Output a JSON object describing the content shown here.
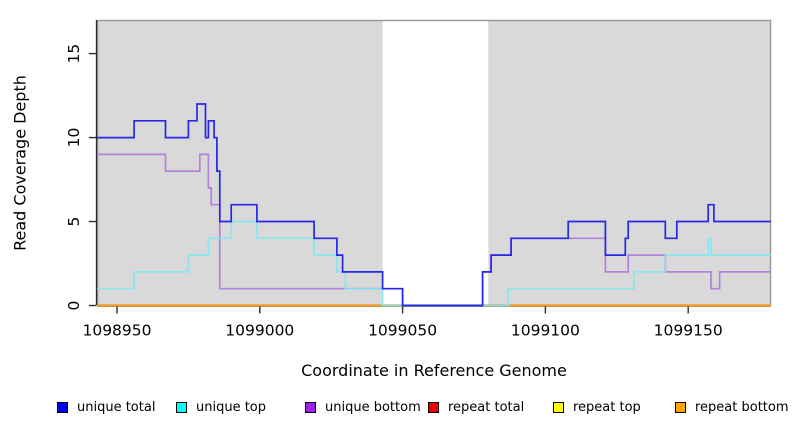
{
  "chart_data": {
    "type": "line",
    "subtype": "step-after",
    "title": "",
    "xlabel": "Coordinate in Reference Genome",
    "ylabel": "Read Coverage Depth",
    "xlim": [
      1098943,
      1099179
    ],
    "ylim": [
      0,
      17
    ],
    "xticks": [
      1098950,
      1099000,
      1099050,
      1099100,
      1099150
    ],
    "yticks": [
      0,
      5,
      10,
      15
    ],
    "grid": false,
    "plot_bg": "#D9D9D9",
    "plot_border": "#979797",
    "axis_color": "#2b2b2b",
    "gap_region": {
      "from": 1099043,
      "to": 1099080,
      "color": "#FFFFFF"
    },
    "legend_position": "bottom",
    "series": [
      {
        "name": "unique total",
        "color": "#2727E8",
        "legend_color": "#0000EE",
        "opacity": 1,
        "points": [
          [
            1098943,
            10
          ],
          [
            1098956,
            11
          ],
          [
            1098967,
            10
          ],
          [
            1098975,
            11
          ],
          [
            1098978,
            12
          ],
          [
            1098981,
            10
          ],
          [
            1098982,
            11
          ],
          [
            1098984,
            10
          ],
          [
            1098985,
            8
          ],
          [
            1098986,
            5
          ],
          [
            1098990,
            6
          ],
          [
            1098999,
            5
          ],
          [
            1099019,
            4
          ],
          [
            1099027,
            3
          ],
          [
            1099029,
            2
          ],
          [
            1099043,
            1
          ],
          [
            1099050,
            0
          ],
          [
            1099078,
            2
          ],
          [
            1099081,
            3
          ],
          [
            1099088,
            4
          ],
          [
            1099108,
            5
          ],
          [
            1099121,
            3
          ],
          [
            1099128,
            4
          ],
          [
            1099129,
            5
          ],
          [
            1099142,
            4
          ],
          [
            1099146,
            5
          ],
          [
            1099157,
            6
          ],
          [
            1099159,
            5
          ],
          [
            1099179,
            5
          ]
        ]
      },
      {
        "name": "unique top",
        "color": "#7DE9F0",
        "legend_color": "#00FFFF",
        "opacity": 0.85,
        "points": [
          [
            1098943,
            1
          ],
          [
            1098956,
            2
          ],
          [
            1098975,
            3
          ],
          [
            1098982,
            4
          ],
          [
            1098990,
            5
          ],
          [
            1098999,
            4
          ],
          [
            1099019,
            3
          ],
          [
            1099027,
            2
          ],
          [
            1099030,
            1
          ],
          [
            1099043,
            0
          ],
          [
            1099087,
            1
          ],
          [
            1099131,
            2
          ],
          [
            1099142,
            3
          ],
          [
            1099157,
            4
          ],
          [
            1099158,
            3
          ],
          [
            1099179,
            3
          ]
        ]
      },
      {
        "name": "unique bottom",
        "color": "#B382DE",
        "legend_color": "#A020F0",
        "opacity": 1,
        "points": [
          [
            1098943,
            9
          ],
          [
            1098967,
            8
          ],
          [
            1098979,
            9
          ],
          [
            1098982,
            7
          ],
          [
            1098983,
            6
          ],
          [
            1098986,
            1
          ],
          [
            1099050,
            0
          ],
          [
            1099078,
            2
          ],
          [
            1099081,
            3
          ],
          [
            1099088,
            4
          ],
          [
            1099121,
            2
          ],
          [
            1099129,
            3
          ],
          [
            1099142,
            2
          ],
          [
            1099158,
            1
          ],
          [
            1099161,
            2
          ],
          [
            1099179,
            2
          ]
        ]
      },
      {
        "name": "repeat total",
        "color": "#E60000",
        "legend_color": "#EE0000",
        "opacity": 1,
        "points": [
          [
            1098943,
            0
          ],
          [
            1099179,
            0
          ]
        ]
      },
      {
        "name": "repeat top",
        "color": "#FFFF00",
        "legend_color": "#FFFF00",
        "opacity": 1,
        "points": [
          [
            1098943,
            0
          ],
          [
            1099179,
            0
          ]
        ]
      },
      {
        "name": "repeat bottom",
        "color": "#FF9714",
        "legend_color": "#FFA500",
        "opacity": 1,
        "points": [
          [
            1098943,
            0
          ],
          [
            1099179,
            0
          ]
        ]
      }
    ]
  }
}
